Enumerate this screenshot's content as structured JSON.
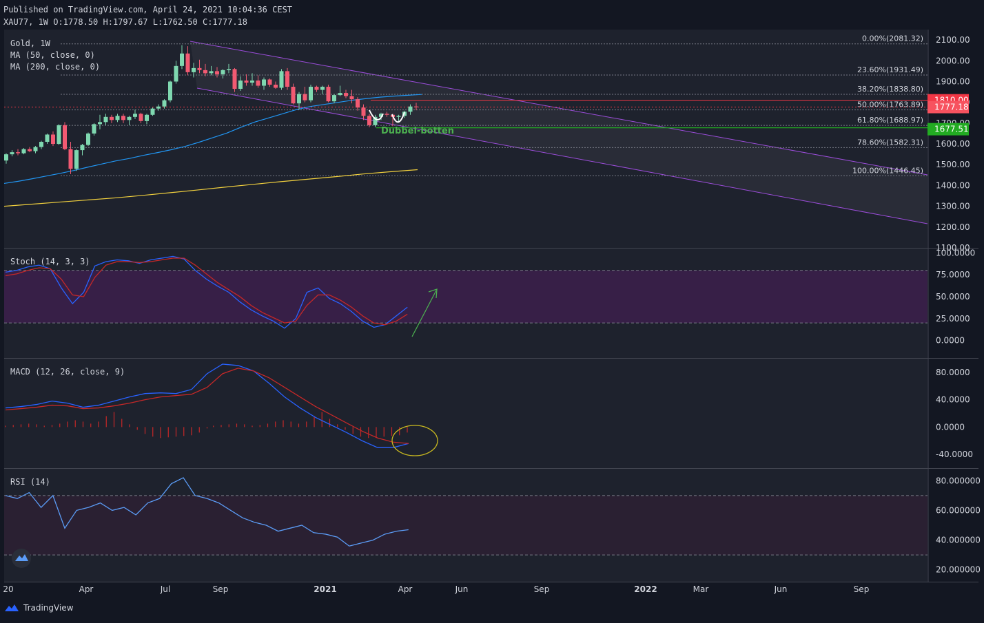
{
  "header": {
    "published": "Published on TradingView.com, April 24, 2021 10:04:36 CEST",
    "ohlc": "XAU77, 1W O:1778.50 H:1797.67 L:1762.50 C:1777.18"
  },
  "chart_data": [
    {
      "type": "candlestick",
      "panel": "price",
      "legend": [
        "Gold, 1W",
        "MA (50, close, 0)",
        "MA (200, close, 0)"
      ],
      "ylim": [
        1100,
        2150
      ],
      "yticks": [
        "2100.00",
        "2000.00",
        "1900.00",
        "1800.00",
        "1700.00",
        "1600.00",
        "1500.00",
        "1400.00",
        "1300.00",
        "1200.00",
        "1100.00"
      ],
      "fib_levels": [
        {
          "label": "0.00%(2081.32)",
          "value": 2081.32
        },
        {
          "label": "23.60%(1931.49)",
          "value": 1931.49
        },
        {
          "label": "38.20%(1838.80)",
          "value": 1838.8
        },
        {
          "label": "50.00%(1763.89)",
          "value": 1763.89
        },
        {
          "label": "61.80%(1688.97)",
          "value": 1688.97
        },
        {
          "label": "78.60%(1582.31)",
          "value": 1582.31
        },
        {
          "label": "100.00%(1446.45)",
          "value": 1446.45
        }
      ],
      "price_tags": [
        {
          "label": "1810.00",
          "value": 1810.0,
          "color": "#f23645"
        },
        {
          "label": "1777.18",
          "value": 1777.18,
          "color": "#f7525f"
        },
        {
          "label": "1677.51",
          "value": 1677.51,
          "color": "#22ab22"
        }
      ],
      "annotation": "Dubbel-botten",
      "candles": [
        [
          1520,
          1555,
          1505,
          1550
        ],
        [
          1550,
          1570,
          1540,
          1560
        ],
        [
          1560,
          1575,
          1545,
          1555
        ],
        [
          1555,
          1580,
          1550,
          1575
        ],
        [
          1575,
          1585,
          1560,
          1565
        ],
        [
          1565,
          1590,
          1555,
          1585
        ],
        [
          1585,
          1615,
          1575,
          1610
        ],
        [
          1610,
          1650,
          1600,
          1645
        ],
        [
          1645,
          1660,
          1590,
          1600
        ],
        [
          1600,
          1695,
          1595,
          1690
        ],
        [
          1690,
          1705,
          1570,
          1575
        ],
        [
          1575,
          1610,
          1455,
          1480
        ],
        [
          1480,
          1575,
          1470,
          1570
        ],
        [
          1570,
          1600,
          1545,
          1595
        ],
        [
          1595,
          1655,
          1590,
          1650
        ],
        [
          1650,
          1700,
          1640,
          1695
        ],
        [
          1695,
          1740,
          1670,
          1705
        ],
        [
          1705,
          1745,
          1690,
          1730
        ],
        [
          1730,
          1740,
          1700,
          1715
        ],
        [
          1715,
          1745,
          1705,
          1735
        ],
        [
          1735,
          1745,
          1700,
          1715
        ],
        [
          1715,
          1735,
          1690,
          1730
        ],
        [
          1730,
          1765,
          1720,
          1745
        ],
        [
          1745,
          1750,
          1700,
          1710
        ],
        [
          1710,
          1745,
          1695,
          1740
        ],
        [
          1740,
          1775,
          1735,
          1770
        ],
        [
          1770,
          1790,
          1760,
          1780
        ],
        [
          1780,
          1815,
          1770,
          1810
        ],
        [
          1810,
          1905,
          1800,
          1900
        ],
        [
          1900,
          2000,
          1890,
          1975
        ],
        [
          1975,
          2075,
          1960,
          2035
        ],
        [
          2035,
          2070,
          1930,
          1945
        ],
        [
          1945,
          1990,
          1920,
          1965
        ],
        [
          1965,
          2005,
          1940,
          1955
        ],
        [
          1955,
          1985,
          1925,
          1940
        ],
        [
          1940,
          1975,
          1930,
          1950
        ],
        [
          1950,
          1970,
          1920,
          1935
        ],
        [
          1935,
          1960,
          1915,
          1955
        ],
        [
          1955,
          1985,
          1940,
          1960
        ],
        [
          1960,
          1965,
          1850,
          1865
        ],
        [
          1865,
          1925,
          1855,
          1905
        ],
        [
          1905,
          1935,
          1880,
          1895
        ],
        [
          1895,
          1940,
          1880,
          1905
        ],
        [
          1905,
          1930,
          1870,
          1880
        ],
        [
          1880,
          1920,
          1860,
          1910
        ],
        [
          1910,
          1915,
          1875,
          1885
        ],
        [
          1885,
          1900,
          1865,
          1870
        ],
        [
          1870,
          1960,
          1860,
          1950
        ],
        [
          1950,
          1965,
          1860,
          1875
        ],
        [
          1875,
          1890,
          1790,
          1795
        ],
        [
          1795,
          1850,
          1765,
          1840
        ],
        [
          1840,
          1875,
          1800,
          1810
        ],
        [
          1810,
          1885,
          1800,
          1875
        ],
        [
          1875,
          1880,
          1850,
          1860
        ],
        [
          1860,
          1880,
          1840,
          1875
        ],
        [
          1875,
          1885,
          1800,
          1805
        ],
        [
          1805,
          1840,
          1795,
          1835
        ],
        [
          1835,
          1880,
          1830,
          1845
        ],
        [
          1845,
          1860,
          1820,
          1830
        ],
        [
          1830,
          1860,
          1795,
          1815
        ],
        [
          1815,
          1825,
          1760,
          1775
        ],
        [
          1775,
          1790,
          1715,
          1735
        ],
        [
          1735,
          1745,
          1680,
          1690
        ],
        [
          1690,
          1740,
          1680,
          1730
        ],
        [
          1730,
          1750,
          1715,
          1745
        ],
        [
          1745,
          1755,
          1730,
          1740
        ],
        [
          1740,
          1745,
          1685,
          1730
        ],
        [
          1730,
          1740,
          1705,
          1735
        ],
        [
          1735,
          1760,
          1725,
          1755
        ],
        [
          1755,
          1790,
          1740,
          1780
        ],
        [
          1780,
          1798,
          1762,
          1777
        ]
      ],
      "ma50": [
        1410,
        1420,
        1432,
        1445,
        1458,
        1472,
        1488,
        1503,
        1518,
        1530,
        1545,
        1558,
        1572,
        1588,
        1608,
        1630,
        1652,
        1680,
        1705,
        1725,
        1745,
        1765,
        1780,
        1790,
        1800,
        1810,
        1818,
        1825,
        1830,
        1834,
        1838
      ],
      "ma200": [
        1300,
        1310,
        1320,
        1330,
        1340,
        1352,
        1365,
        1378,
        1392,
        1405,
        1418,
        1430,
        1442,
        1455,
        1466,
        1476
      ]
    },
    {
      "type": "line",
      "panel": "stoch",
      "title": "Stoch (14, 3, 3)",
      "ylim": [
        -20,
        105
      ],
      "yticks": [
        "100.0000",
        "75.0000",
        "50.0000",
        "25.0000",
        "0.0000"
      ],
      "bands": [
        20,
        80
      ],
      "series": [
        {
          "key": "k",
          "color": "#2962ff",
          "values": [
            78,
            80,
            84,
            86,
            82,
            60,
            42,
            55,
            85,
            90,
            92,
            91,
            88,
            92,
            94,
            96,
            93,
            80,
            70,
            62,
            55,
            44,
            35,
            28,
            22,
            14,
            25,
            55,
            60,
            48,
            42,
            33,
            22,
            15,
            18,
            28,
            38
          ]
        },
        {
          "key": "d",
          "color": "#c62828",
          "values": [
            74,
            76,
            80,
            83,
            82,
            70,
            52,
            50,
            72,
            86,
            90,
            90,
            89,
            90,
            92,
            94,
            94,
            86,
            76,
            66,
            58,
            50,
            40,
            32,
            26,
            20,
            22,
            40,
            52,
            52,
            46,
            38,
            28,
            20,
            18,
            22,
            30
          ]
        }
      ]
    },
    {
      "type": "line",
      "panel": "macd",
      "title": "MACD (12, 26, close, 9)",
      "ylim": [
        -60,
        100
      ],
      "yticks": [
        "80.0000",
        "40.0000",
        "0.0000",
        "-40.0000"
      ],
      "series": [
        {
          "key": "macd",
          "color": "#2962ff",
          "values": [
            28,
            30,
            33,
            38,
            35,
            29,
            32,
            38,
            44,
            49,
            50,
            49,
            55,
            78,
            92,
            90,
            82,
            64,
            44,
            28,
            14,
            3,
            -8,
            -20,
            -30,
            -30,
            -24
          ]
        },
        {
          "key": "signal",
          "color": "#c62828",
          "values": [
            25,
            27,
            29,
            32,
            31,
            27,
            28,
            31,
            35,
            40,
            44,
            46,
            48,
            58,
            78,
            86,
            82,
            72,
            58,
            44,
            30,
            18,
            6,
            -6,
            -16,
            -22,
            -24
          ]
        }
      ],
      "histogram": [
        2,
        3,
        4,
        5,
        4,
        2,
        3,
        5,
        8,
        10,
        8,
        5,
        8,
        16,
        22,
        12,
        4,
        -4,
        -10,
        -14,
        -16,
        -15,
        -14,
        -13,
        -12,
        -8,
        -2
      ]
    },
    {
      "type": "line",
      "panel": "rsi",
      "title": "RSI (14)",
      "ylim": [
        12,
        88
      ],
      "yticks": [
        "80.000000",
        "60.000000",
        "40.000000",
        "20.000000"
      ],
      "bands": [
        30,
        70
      ],
      "series": [
        {
          "key": "rsi",
          "color": "#5b9cf6",
          "values": [
            70,
            68,
            72,
            62,
            70,
            48,
            60,
            62,
            65,
            60,
            62,
            57,
            65,
            68,
            78,
            82,
            70,
            68,
            65,
            60,
            55,
            52,
            50,
            46,
            48,
            50,
            45,
            44,
            42,
            36,
            38,
            40,
            44,
            46,
            47
          ]
        }
      ]
    }
  ],
  "xaxis": [
    "20",
    "Apr",
    "Jul",
    "Sep",
    "2021",
    "Apr",
    "Jun",
    "Sep",
    "2022",
    "Mar",
    "Jun",
    "Sep"
  ],
  "footer": {
    "brand": "TradingView"
  }
}
